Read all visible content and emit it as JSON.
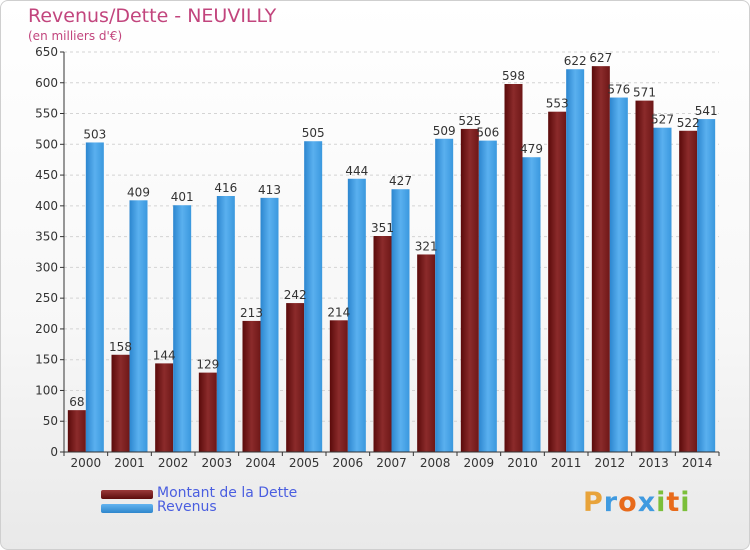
{
  "chart_data": {
    "type": "bar",
    "title": "Revenus/Dette - NEUVILLY",
    "subtitle": "(en milliers d'€)",
    "categories": [
      "2000",
      "2001",
      "2002",
      "2003",
      "2004",
      "2005",
      "2006",
      "2007",
      "2008",
      "2009",
      "2010",
      "2011",
      "2012",
      "2013",
      "2014"
    ],
    "series": [
      {
        "name": "Montant de la Dette",
        "color": "#7a1f1f",
        "values": [
          68,
          158,
          144,
          129,
          213,
          242,
          214,
          351,
          321,
          525,
          598,
          553,
          627,
          571,
          522
        ]
      },
      {
        "name": "Revenus",
        "color": "#3f9ae0",
        "values": [
          503,
          409,
          401,
          416,
          413,
          505,
          444,
          427,
          509,
          506,
          479,
          622,
          576,
          527,
          541
        ]
      }
    ],
    "y_ticks": [
      0,
      50,
      100,
      150,
      200,
      250,
      300,
      350,
      400,
      450,
      500,
      550,
      600,
      650
    ],
    "ylim": [
      0,
      650
    ],
    "grid": true,
    "legend_position": "bottom-left"
  },
  "logo": {
    "letters": [
      "P",
      "r",
      "o",
      "x",
      "i",
      "t",
      "i"
    ],
    "colors": [
      "#e8a33a",
      "#3f9ae0",
      "#e86a1a",
      "#3f9ae0",
      "#7bbf3a",
      "#e86a1a",
      "#7bbf3a"
    ]
  }
}
